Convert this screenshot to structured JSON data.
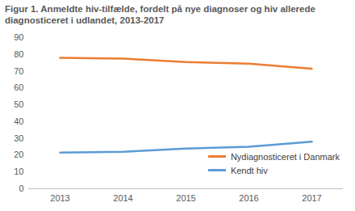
{
  "chart_data": {
    "type": "line",
    "title": "Figur 1. Anmeldte hiv-tilfælde, fordelt på nye diagnoser og hiv allerede diagnosticeret i udlandet, 2013-2017",
    "categories": [
      "2013",
      "2014",
      "2015",
      "2016",
      "2017"
    ],
    "series": [
      {
        "name": "Nydiagnosticeret i Danmark",
        "color": "#ED7D31",
        "values": [
          78,
          77.5,
          75.5,
          74.5,
          71.5
        ]
      },
      {
        "name": "Kendt hiv",
        "color": "#5B9BD5",
        "values": [
          21.5,
          22,
          24,
          25,
          28
        ]
      }
    ],
    "ylim": [
      0,
      90
    ],
    "yticks": [
      0,
      10,
      20,
      30,
      40,
      50,
      60,
      70,
      80,
      90
    ],
    "grid": false,
    "legend": "bottom-right"
  }
}
